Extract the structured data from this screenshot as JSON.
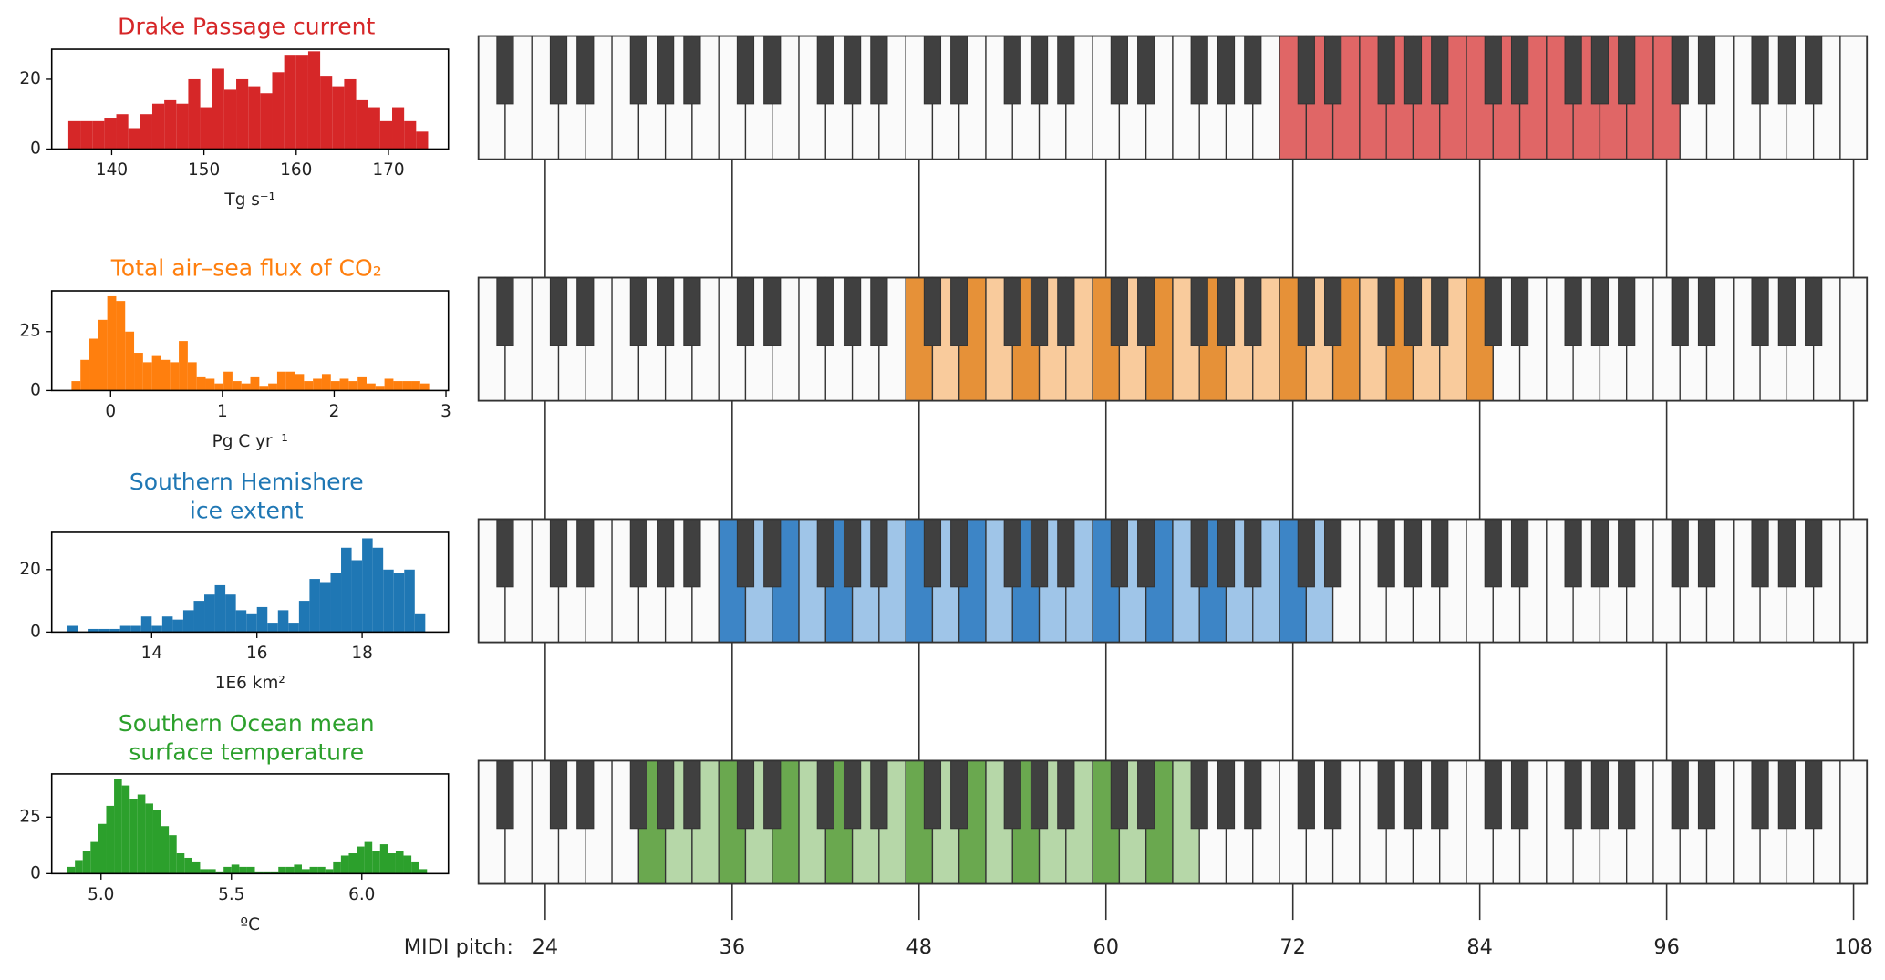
{
  "chart_data": [
    {
      "type": "histogram",
      "title": "Drake Passage current",
      "color": "#d62728",
      "xlabel": "Tg s⁻¹",
      "bins": [
        135.3,
        136.6,
        137.9,
        139.2,
        140.5,
        141.8,
        143.1,
        144.4,
        145.7,
        147.0,
        148.3,
        149.6,
        150.9,
        152.2,
        153.5,
        154.8,
        156.1,
        157.4,
        158.7,
        160.0,
        161.3,
        162.6,
        163.9,
        165.2,
        166.5,
        167.8,
        169.1,
        170.4,
        171.7,
        173.0,
        174.3
      ],
      "counts": [
        8,
        8,
        8,
        9,
        10,
        6,
        10,
        13,
        14,
        13,
        20,
        12,
        23,
        17,
        20,
        18,
        16,
        22,
        27,
        27,
        28,
        21,
        18,
        20,
        14,
        12,
        8,
        12,
        8,
        5
      ],
      "xlim": [
        133.5,
        176.5
      ],
      "xticks": [
        140,
        150,
        160,
        170
      ],
      "ylim": [
        0,
        28.6
      ],
      "yticks": [
        0,
        20
      ]
    },
    {
      "type": "histogram",
      "title": "Total air–sea flux of CO₂",
      "color": "#ff7f0e",
      "xlabel": "Pg C yr⁻¹",
      "bins": [
        -0.35,
        -0.27,
        -0.19,
        -0.11,
        -0.03,
        0.05,
        0.13,
        0.21,
        0.29,
        0.37,
        0.45,
        0.53,
        0.61,
        0.69,
        0.77,
        0.85,
        0.93,
        1.01,
        1.09,
        1.17,
        1.25,
        1.33,
        1.41,
        1.49,
        1.57,
        1.65,
        1.73,
        1.81,
        1.89,
        1.97,
        2.05,
        2.13,
        2.21,
        2.29,
        2.37,
        2.45,
        2.53,
        2.61,
        2.69,
        2.77,
        2.85
      ],
      "counts": [
        4,
        13,
        22,
        30,
        40,
        38,
        25,
        16,
        12,
        15,
        13,
        12,
        21,
        12,
        6,
        5,
        3,
        8,
        4,
        3,
        6,
        2,
        3,
        8,
        8,
        7,
        4,
        5,
        7,
        4,
        5,
        4,
        6,
        3,
        2,
        5,
        4,
        4,
        4,
        3
      ],
      "xlim": [
        -0.527,
        3.022
      ],
      "xticks": [
        0,
        1,
        2,
        3
      ],
      "ylim": [
        0,
        42.3
      ],
      "yticks": [
        0,
        25
      ]
    },
    {
      "type": "histogram",
      "title": [
        "Southern Hemishere",
        "ice extent"
      ],
      "color": "#1f77b4",
      "xlabel": "1E6 km²",
      "bins": [
        12.4,
        12.6,
        12.8,
        13,
        13.2,
        13.4,
        13.6,
        13.8,
        14,
        14.2,
        14.4,
        14.6,
        14.8,
        15,
        15.2,
        15.4,
        15.6,
        15.8,
        16,
        16.2,
        16.4,
        16.6,
        16.8,
        17,
        17.2,
        17.4,
        17.6,
        17.8,
        18,
        18.2,
        18.4,
        18.6,
        18.8,
        19,
        19.2
      ],
      "counts": [
        2,
        0,
        1,
        1,
        1,
        2,
        2,
        5,
        2,
        5,
        4,
        7,
        10,
        12,
        15,
        12,
        7,
        6,
        8,
        3,
        7,
        3,
        10,
        17,
        16,
        19,
        27,
        23,
        30,
        27,
        20,
        19,
        20,
        6
      ],
      "xlim": [
        12.1,
        19.64
      ],
      "xticks": [
        14,
        16,
        18
      ],
      "ylim": [
        0,
        31.9
      ],
      "yticks": [
        0,
        20
      ]
    },
    {
      "type": "histogram",
      "title": [
        "Southern Ocean mean",
        "surface temperature"
      ],
      "color": "#2ca02c",
      "xlabel": "ºC",
      "bins": [
        4.87,
        4.9,
        4.93,
        4.96,
        4.99,
        5.02,
        5.05,
        5.08,
        5.11,
        5.14,
        5.17,
        5.2,
        5.23,
        5.26,
        5.29,
        5.32,
        5.35,
        5.38,
        5.41,
        5.44,
        5.47,
        5.5,
        5.53,
        5.56,
        5.59,
        5.62,
        5.65,
        5.68,
        5.71,
        5.74,
        5.77,
        5.8,
        5.83,
        5.86,
        5.89,
        5.92,
        5.95,
        5.98,
        6.01,
        6.04,
        6.07,
        6.1,
        6.13,
        6.16,
        6.19,
        6.22,
        6.25
      ],
      "counts": [
        3,
        6,
        10,
        14,
        22,
        30,
        42,
        39,
        33,
        35,
        31,
        28,
        21,
        17,
        9,
        7,
        5,
        2,
        2,
        1,
        3,
        4,
        3,
        3,
        1,
        1,
        1,
        3,
        3,
        4,
        2,
        3,
        3,
        2,
        5,
        8,
        9,
        12,
        14,
        10,
        13,
        9,
        10,
        8,
        5,
        2
      ],
      "xlim": [
        4.811,
        6.332
      ],
      "xticks": [
        {
          "value": 5,
          "label": "5.0"
        },
        5.5,
        {
          "value": 6,
          "label": "6.0"
        }
      ],
      "ylim": [
        0,
        44.1
      ],
      "yticks": [
        0,
        25
      ]
    },
    {
      "type": "piano",
      "xlim": [
        21,
        108
      ],
      "pitch_range": [
        72,
        96
      ],
      "color": "#e06666",
      "light_color": "#e06666"
    },
    {
      "type": "piano",
      "xlim": [
        21,
        108
      ],
      "pitch_range": [
        48,
        84
      ],
      "color": "#e69138",
      "light_color": "#f9cb9c",
      "accent_pitch_classes": [
        0,
        4,
        7
      ]
    },
    {
      "type": "piano",
      "xlim": [
        21,
        108
      ],
      "pitch_range": [
        36,
        74
      ],
      "color": "#3d85c6",
      "light_color": "#9fc5e8",
      "accent_pitch_classes": [
        0,
        4,
        7
      ]
    },
    {
      "type": "piano",
      "xlim": [
        21,
        108
      ],
      "pitch_range": [
        31,
        65
      ],
      "color": "#6aa84f",
      "light_color": "#b6d7a8",
      "accent_pitch_classes": [
        0,
        4,
        7
      ]
    },
    {
      "type": "pitch_axis",
      "xlabel": "MIDI pitch:",
      "xlim": [
        21,
        108
      ],
      "xticks": [
        24,
        36,
        48,
        60,
        72,
        84,
        96,
        108
      ]
    }
  ]
}
